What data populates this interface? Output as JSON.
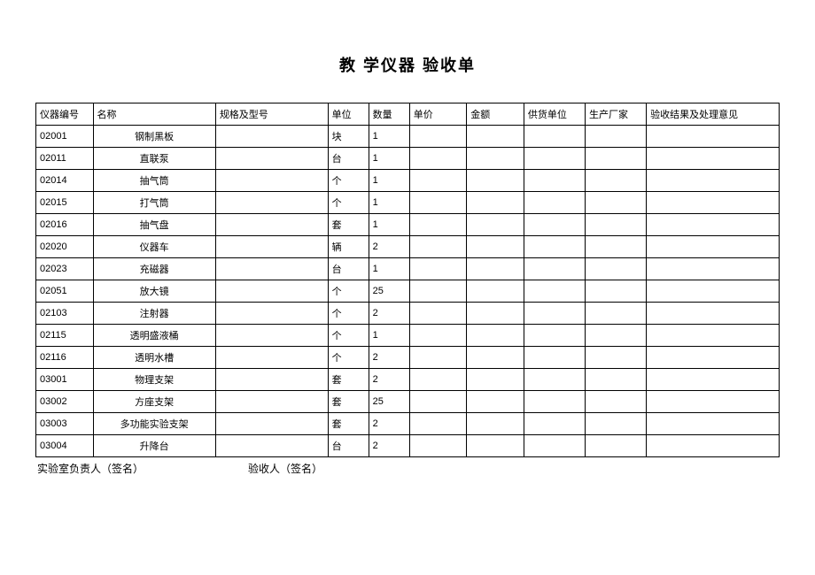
{
  "title": "教  学仪器  验收单",
  "table": {
    "columns": [
      {
        "key": "id",
        "label": "仪器编号",
        "class": "col-id"
      },
      {
        "key": "name",
        "label": "名称",
        "class": "col-name"
      },
      {
        "key": "spec",
        "label": "规格及型号",
        "class": "col-spec"
      },
      {
        "key": "unit",
        "label": "单位",
        "class": "col-unit"
      },
      {
        "key": "qty",
        "label": "数量",
        "class": "col-qty"
      },
      {
        "key": "price",
        "label": "单价",
        "class": "col-price"
      },
      {
        "key": "amount",
        "label": "金额",
        "class": "col-amount"
      },
      {
        "key": "supplier",
        "label": "供货单位",
        "class": "col-supplier"
      },
      {
        "key": "maker",
        "label": "生产厂家",
        "class": "col-maker"
      },
      {
        "key": "result",
        "label": "验收结果及处理意见",
        "class": "col-result"
      }
    ],
    "rows": [
      {
        "id": "02001",
        "name": "钢制黑板",
        "spec": "",
        "unit": "块",
        "qty": "1",
        "price": "",
        "amount": "",
        "supplier": "",
        "maker": "",
        "result": ""
      },
      {
        "id": "02011",
        "name": "直联泵",
        "spec": "",
        "unit": "台",
        "qty": "1",
        "price": "",
        "amount": "",
        "supplier": "",
        "maker": "",
        "result": ""
      },
      {
        "id": "02014",
        "name": "抽气筒",
        "spec": "",
        "unit": "个",
        "qty": "1",
        "price": "",
        "amount": "",
        "supplier": "",
        "maker": "",
        "result": ""
      },
      {
        "id": "02015",
        "name": "打气筒",
        "spec": "",
        "unit": "个",
        "qty": "1",
        "price": "",
        "amount": "",
        "supplier": "",
        "maker": "",
        "result": ""
      },
      {
        "id": "02016",
        "name": "抽气盘",
        "spec": "",
        "unit": "套",
        "qty": "1",
        "price": "",
        "amount": "",
        "supplier": "",
        "maker": "",
        "result": ""
      },
      {
        "id": "02020",
        "name": "仪器车",
        "spec": "",
        "unit": "辆",
        "qty": "2",
        "price": "",
        "amount": "",
        "supplier": "",
        "maker": "",
        "result": ""
      },
      {
        "id": "02023",
        "name": "充磁器",
        "spec": "",
        "unit": "台",
        "qty": "1",
        "price": "",
        "amount": "",
        "supplier": "",
        "maker": "",
        "result": ""
      },
      {
        "id": "02051",
        "name": "放大镜",
        "spec": "",
        "unit": "个",
        "qty": "25",
        "price": "",
        "amount": "",
        "supplier": "",
        "maker": "",
        "result": ""
      },
      {
        "id": "02103",
        "name": "注射器",
        "spec": "",
        "unit": "个",
        "qty": "2",
        "price": "",
        "amount": "",
        "supplier": "",
        "maker": "",
        "result": ""
      },
      {
        "id": "02115",
        "name": "透明盛液桶",
        "spec": "",
        "unit": "个",
        "qty": "1",
        "price": "",
        "amount": "",
        "supplier": "",
        "maker": "",
        "result": ""
      },
      {
        "id": "02116",
        "name": "透明水槽",
        "spec": "",
        "unit": "个",
        "qty": "2",
        "price": "",
        "amount": "",
        "supplier": "",
        "maker": "",
        "result": ""
      },
      {
        "id": "03001",
        "name": "物理支架",
        "spec": "",
        "unit": "套",
        "qty": "2",
        "price": "",
        "amount": "",
        "supplier": "",
        "maker": "",
        "result": ""
      },
      {
        "id": "03002",
        "name": "方座支架",
        "spec": "",
        "unit": "套",
        "qty": "25",
        "price": "",
        "amount": "",
        "supplier": "",
        "maker": "",
        "result": ""
      },
      {
        "id": "03003",
        "name": "多功能实验支架",
        "spec": "",
        "unit": "套",
        "qty": "2",
        "price": "",
        "amount": "",
        "supplier": "",
        "maker": "",
        "result": ""
      },
      {
        "id": "03004",
        "name": "升降台",
        "spec": "",
        "unit": "台",
        "qty": "2",
        "price": "",
        "amount": "",
        "supplier": "",
        "maker": "",
        "result": ""
      }
    ]
  },
  "signatures": {
    "lab_head": "实验室负责人（签名）",
    "inspector": "验收人（签名）"
  },
  "styling": {
    "background_color": "#ffffff",
    "border_color": "#000000",
    "text_color": "#000000",
    "title_fontsize": 18,
    "cell_fontsize": 11,
    "signature_fontsize": 12
  }
}
